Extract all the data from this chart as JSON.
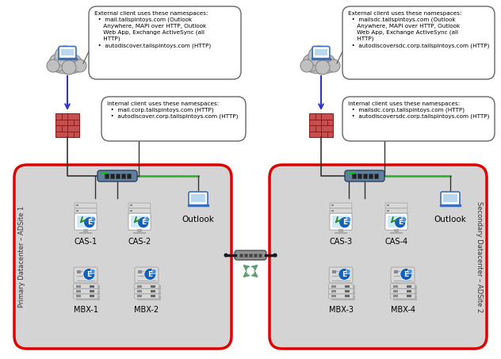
{
  "bg_color": "#ffffff",
  "gray_box_color": "#d4d4d4",
  "red_border_color": "#e00000",
  "left_external_text": "External client uses these namespaces:\n  •  mail.tailspintoys.com (Outlook\n     Anywhere, MAPI over HTTP, Outlook\n     Web App, Exchange ActiveSync (all\n     HTTP)\n  •  autodiscover.tailspintoys.com (HTTP)",
  "left_internal_text": "Internal client uses these namespaces:\n  •  mail.corp.tailspintoys.com (HTTP)\n  •  autodiscover.corp.tailspintoys.com (HTTP)",
  "right_external_text": "External client uses these namespaces:\n  •  mailsdc.tailspintoys.com (Outlook\n     Anywhere, MAPI over HTTP, Outlook\n     Web App, Exchange ActiveSync (all\n     HTTP)\n  •  autodiscoversdc.corp.tailspintoys.com (HTTP)",
  "right_internal_text": "Internal client uses these namespaces:\n  •  mailsdc.corp.tailspintoys.com (HTTP)\n  •  autodiscoversdc.corp.tailspintoys.com (HTTP)",
  "left_label": "Primary Datacenter – ADSite 1",
  "right_label": "Secondary Datacenter – ADSite 2",
  "cas_labels": [
    "CAS-1",
    "CAS-2",
    "CAS-3",
    "CAS-4"
  ],
  "mbx_labels": [
    "MBX-1",
    "MBX-2",
    "MBX-3",
    "MBX-4"
  ],
  "outlook_label": "Outlook",
  "callout_bg": "#ffffff",
  "callout_border": "#666666",
  "arrow_blue": "#3333cc",
  "green_color": "#5a9e6e",
  "switch_gray": "#808080",
  "firewall_red": "#c0504d",
  "exchange_blue": "#0070c0",
  "laptop_blue": "#4472c4",
  "cloud_gray": "#b0b0b0",
  "wan_black": "#1a1a1a"
}
